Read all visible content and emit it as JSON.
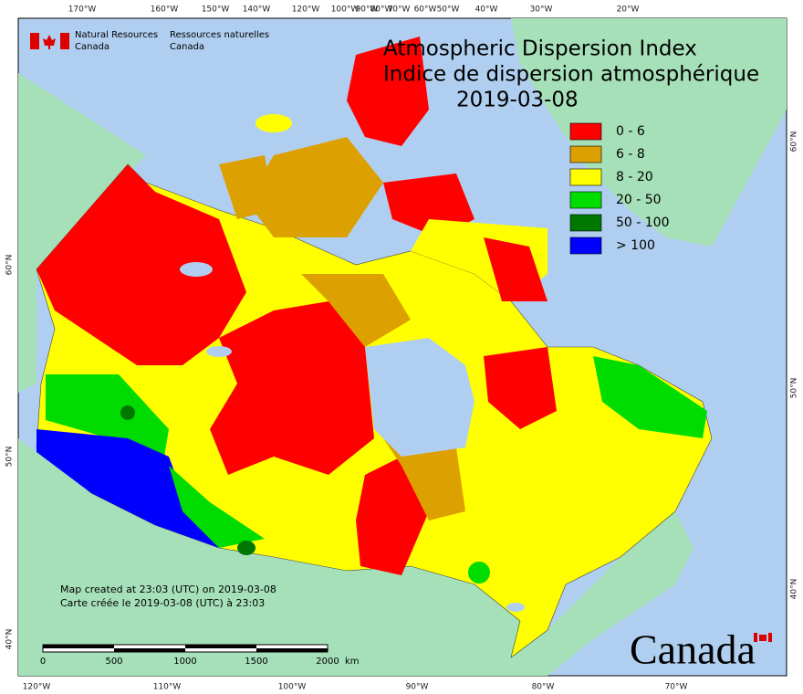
{
  "header": {
    "department_en": [
      "Natural Resources",
      "Canada"
    ],
    "department_fr": [
      "Ressources naturelles",
      "Canada"
    ]
  },
  "title": {
    "lines": [
      "Atmospheric Dispersion Index",
      "Indice de dispersion atmosphérique"
    ],
    "date": "2019-03-08"
  },
  "legend": [
    {
      "label": "0 - 6",
      "color": "#ff0000"
    },
    {
      "label": "6 - 8",
      "color": "#dca000"
    },
    {
      "label": "8 - 20",
      "color": "#ffff00"
    },
    {
      "label": "20 - 50",
      "color": "#00dc00"
    },
    {
      "label": "50 - 100",
      "color": "#007800"
    },
    {
      "label": "> 100",
      "color": "#0000ff"
    }
  ],
  "graticule": {
    "top": [
      "170°W",
      "160°W",
      "150°W",
      "140°W",
      "120°W",
      "100°W",
      "90°W",
      "80°W",
      "70°W",
      "60°W",
      "50°W",
      "40°W",
      "30°W",
      "20°W"
    ],
    "bottom": [
      "120°W",
      "110°W",
      "100°W",
      "90°W",
      "80°W",
      "70°W"
    ],
    "left": [
      "60°N",
      "50°N",
      "40°N"
    ],
    "right": [
      "60°N",
      "50°N",
      "40°N"
    ]
  },
  "notes": [
    "Map created at 23:03 (UTC) on 2019-03-08",
    "Carte créée le 2019-03-08 (UTC) à 23:03"
  ],
  "scale_bar": {
    "labels": [
      "0",
      "500",
      "1000",
      "1500",
      "2000"
    ],
    "unit": "km"
  },
  "wordmark": "Canada"
}
